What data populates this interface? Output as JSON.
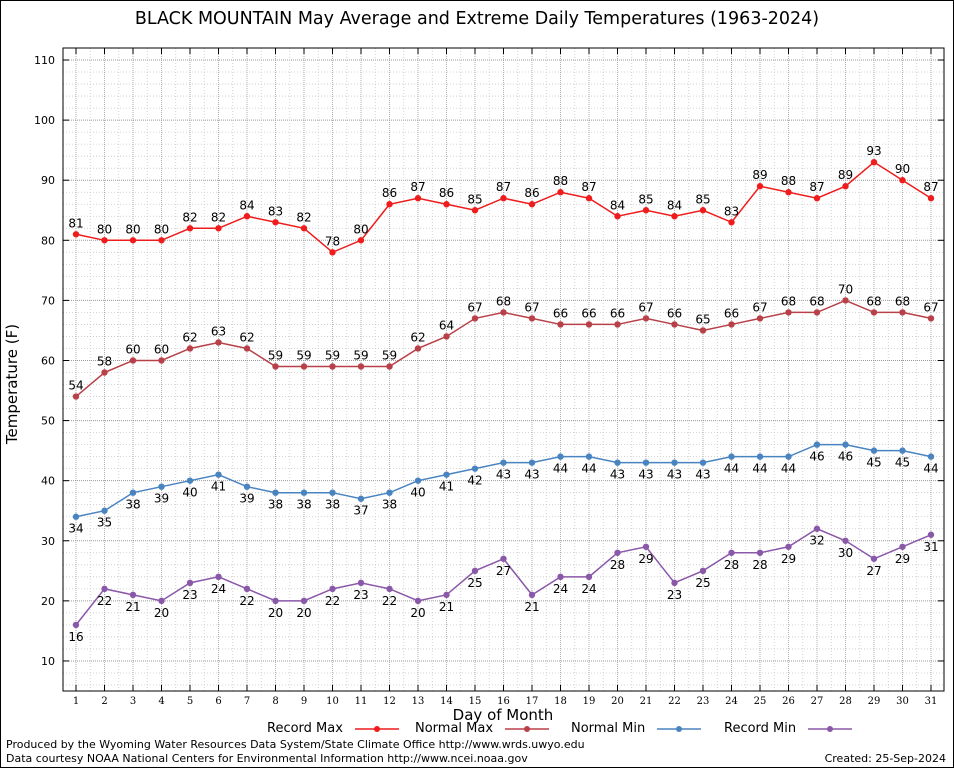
{
  "chart_data": {
    "type": "line",
    "title": "BLACK MOUNTAIN May Average and Extreme Daily Temperatures (1963-2024)",
    "xlabel": "Day of Month",
    "ylabel": "Temperature (F)",
    "xlim": [
      1,
      31
    ],
    "ylim": [
      5,
      112
    ],
    "yticks": [
      10,
      20,
      30,
      40,
      50,
      60,
      70,
      80,
      90,
      100,
      110
    ],
    "grid": true,
    "legend_position": "bottom",
    "x": [
      1,
      2,
      3,
      4,
      5,
      6,
      7,
      8,
      9,
      10,
      11,
      12,
      13,
      14,
      15,
      16,
      17,
      18,
      19,
      20,
      21,
      22,
      23,
      24,
      25,
      26,
      27,
      28,
      29,
      30,
      31
    ],
    "series": [
      {
        "name": "Record Max",
        "color": "#ee1c1c",
        "label_position": "above",
        "values": [
          81,
          80,
          80,
          80,
          82,
          82,
          84,
          83,
          82,
          78,
          80,
          86,
          87,
          86,
          85,
          87,
          86,
          88,
          87,
          84,
          85,
          84,
          85,
          83,
          89,
          88,
          87,
          89,
          93,
          90,
          87
        ]
      },
      {
        "name": "Normal Max",
        "color": "#b84048",
        "label_position": "above",
        "values": [
          54,
          58,
          60,
          60,
          62,
          63,
          62,
          59,
          59,
          59,
          59,
          59,
          62,
          64,
          67,
          68,
          67,
          66,
          66,
          66,
          67,
          66,
          65,
          66,
          67,
          68,
          68,
          70,
          68,
          68,
          67
        ]
      },
      {
        "name": "Normal Min",
        "color": "#4a84c0",
        "label_position": "below",
        "values": [
          34,
          35,
          38,
          39,
          40,
          41,
          39,
          38,
          38,
          38,
          37,
          38,
          40,
          41,
          42,
          43,
          43,
          44,
          44,
          43,
          43,
          43,
          43,
          44,
          44,
          44,
          46,
          46,
          45,
          45,
          44
        ]
      },
      {
        "name": "Record Min",
        "color": "#8a58a8",
        "label_position": "below",
        "values": [
          16,
          22,
          21,
          20,
          23,
          24,
          22,
          20,
          20,
          22,
          23,
          22,
          20,
          21,
          25,
          27,
          21,
          24,
          24,
          28,
          29,
          23,
          25,
          28,
          28,
          29,
          32,
          30,
          27,
          29,
          31
        ]
      }
    ]
  },
  "footer": {
    "produced_by": "Produced by the Wyoming Water Resources Data System/State Climate Office http://www.wrds.uwyo.edu",
    "data_courtesy": "Data courtesy NOAA National Centers for Environmental Information http://www.ncei.noaa.gov",
    "created": "Created:  25-Sep-2024"
  }
}
